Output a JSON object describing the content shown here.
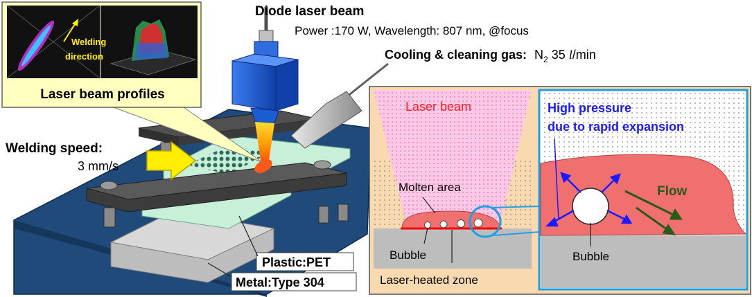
{
  "colors": {
    "plate": "#1f4a7a",
    "clamp": "#404040",
    "laser_head": "#1b5cd0",
    "beam": "#ff9900",
    "plastic": "#c8f0d8",
    "molten": "#f07070",
    "metal": "#bdbdbd",
    "inset_bg": "#f9d9b0",
    "callout_bg": "#ffffc0",
    "text_blue": "#1a1aff",
    "text_red": "#ff2020",
    "flow_green": "#2a5a1a",
    "zoom_circle": "#1ea0e0"
  },
  "labels": {
    "diode_title": "Diode laser beam",
    "diode_params": "Power :170 W, Wavelength: 807 nm, @focus",
    "gas_bold": "Cooling & cleaning gas:",
    "gas_n": "N",
    "gas_sub": "2",
    "gas_value": "35",
    "gas_unit_l": "l",
    "gas_unit_min": "/min",
    "beam_profiles": "Laser beam profiles",
    "welding_dir_1": "Welding",
    "welding_dir_2": "direction",
    "speed_1": "Welding speed:",
    "speed_2": "3 mm/s",
    "plastic": "Plastic:PET",
    "metal": "Metal:Type 304"
  },
  "inset": {
    "laser_beam": "Laser beam",
    "molten_area": "Molten area",
    "bubble": "Bubble",
    "heated_zone": "Laser-heated zone"
  },
  "zoom": {
    "pressure_1": "High pressure",
    "pressure_2": "due to rapid expansion",
    "flow": "Flow",
    "bubble": "Bubble"
  }
}
